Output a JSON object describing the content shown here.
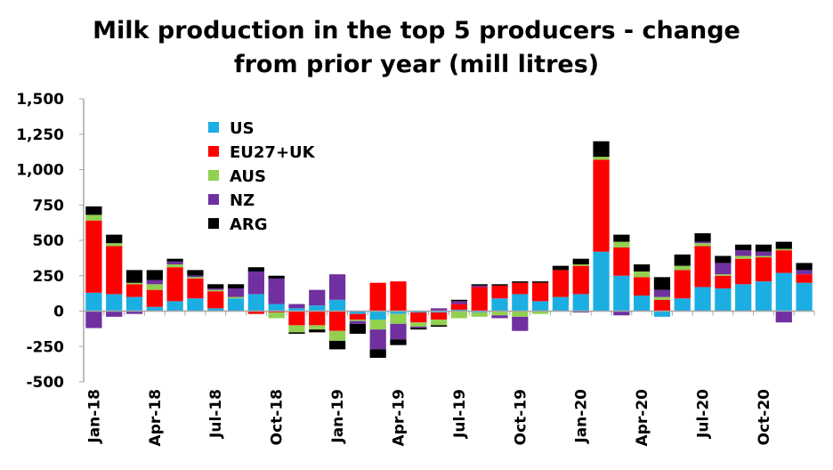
{
  "chart_data": {
    "type": "bar",
    "stacked": true,
    "title_lines": [
      "Milk production in the top 5 producers - change",
      "from prior year (mill litres)"
    ],
    "xlabel": "",
    "ylabel": "",
    "ylim": [
      -500,
      1500
    ],
    "yticks": [
      -500,
      -250,
      0,
      250,
      500,
      750,
      1000,
      1250,
      1500
    ],
    "ytick_labels": [
      "-500",
      "-250",
      "0",
      "250",
      "500",
      "750",
      "1,000",
      "1,250",
      "1,500"
    ],
    "grid": false,
    "legend_position": "top-left (inside plot)",
    "categories": [
      "Jan-18",
      "Feb-18",
      "Mar-18",
      "Apr-18",
      "May-18",
      "Jun-18",
      "Jul-18",
      "Aug-18",
      "Sep-18",
      "Oct-18",
      "Nov-18",
      "Dec-18",
      "Jan-19",
      "Feb-19",
      "Mar-19",
      "Apr-19",
      "May-19",
      "Jun-19",
      "Jul-19",
      "Aug-19",
      "Sep-19",
      "Oct-19",
      "Nov-19",
      "Dec-19",
      "Jan-20",
      "Feb-20",
      "Mar-20",
      "Apr-20",
      "May-20",
      "Jun-20",
      "Jul-20",
      "Aug-20",
      "Sep-20",
      "Oct-20",
      "Nov-20",
      "Dec-20"
    ],
    "xtick_labels": [
      {
        "index": 0,
        "text": "Jan-18"
      },
      {
        "index": 3,
        "text": "Apr-18"
      },
      {
        "index": 6,
        "text": "Jul-18"
      },
      {
        "index": 9,
        "text": "Oct-18"
      },
      {
        "index": 12,
        "text": "Jan-19"
      },
      {
        "index": 15,
        "text": "Apr-19"
      },
      {
        "index": 18,
        "text": "Jul-19"
      },
      {
        "index": 21,
        "text": "Oct-19"
      },
      {
        "index": 24,
        "text": "Jan-20"
      },
      {
        "index": 27,
        "text": "Apr-20"
      },
      {
        "index": 30,
        "text": "Jul-20"
      },
      {
        "index": 33,
        "text": "Oct-20"
      }
    ],
    "series": [
      {
        "name": "US",
        "color": "#1BAEE3",
        "values": [
          130,
          120,
          100,
          30,
          70,
          90,
          20,
          90,
          120,
          50,
          20,
          40,
          80,
          -20,
          -60,
          -20,
          -10,
          -10,
          10,
          -10,
          90,
          120,
          70,
          100,
          120,
          420,
          250,
          110,
          -40,
          90,
          170,
          160,
          190,
          210,
          270,
          200
        ]
      },
      {
        "name": "EU27+UK",
        "color": "#FF0000",
        "values": [
          510,
          340,
          90,
          120,
          240,
          140,
          120,
          0,
          -20,
          -10,
          -100,
          -100,
          -140,
          -40,
          200,
          210,
          -70,
          -50,
          40,
          170,
          90,
          80,
          130,
          190,
          200,
          650,
          200,
          130,
          80,
          200,
          290,
          90,
          180,
          170,
          160,
          60
        ]
      },
      {
        "name": "AUS",
        "color": "#92D050",
        "values": [
          40,
          20,
          10,
          40,
          20,
          10,
          10,
          10,
          0,
          -40,
          -50,
          -30,
          -70,
          -10,
          -70,
          -70,
          -30,
          -40,
          -50,
          -30,
          -30,
          -40,
          -20,
          0,
          10,
          20,
          40,
          40,
          20,
          30,
          20,
          10,
          20,
          10,
          10,
          0
        ]
      },
      {
        "name": "NZ",
        "color": "#7030A0",
        "values": [
          -120,
          -40,
          -20,
          30,
          20,
          10,
          10,
          60,
          160,
          180,
          30,
          110,
          180,
          -20,
          -140,
          -110,
          -10,
          20,
          20,
          10,
          -20,
          -100,
          0,
          0,
          -10,
          0,
          -30,
          0,
          50,
          0,
          10,
          80,
          40,
          30,
          -80,
          30
        ]
      },
      {
        "name": "ARG",
        "color": "#000000",
        "values": [
          60,
          60,
          90,
          70,
          20,
          40,
          30,
          30,
          30,
          20,
          -10,
          -20,
          -60,
          -70,
          -60,
          -40,
          -10,
          -10,
          10,
          10,
          10,
          10,
          10,
          30,
          40,
          110,
          50,
          50,
          90,
          80,
          60,
          50,
          40,
          50,
          50,
          50
        ]
      }
    ]
  }
}
